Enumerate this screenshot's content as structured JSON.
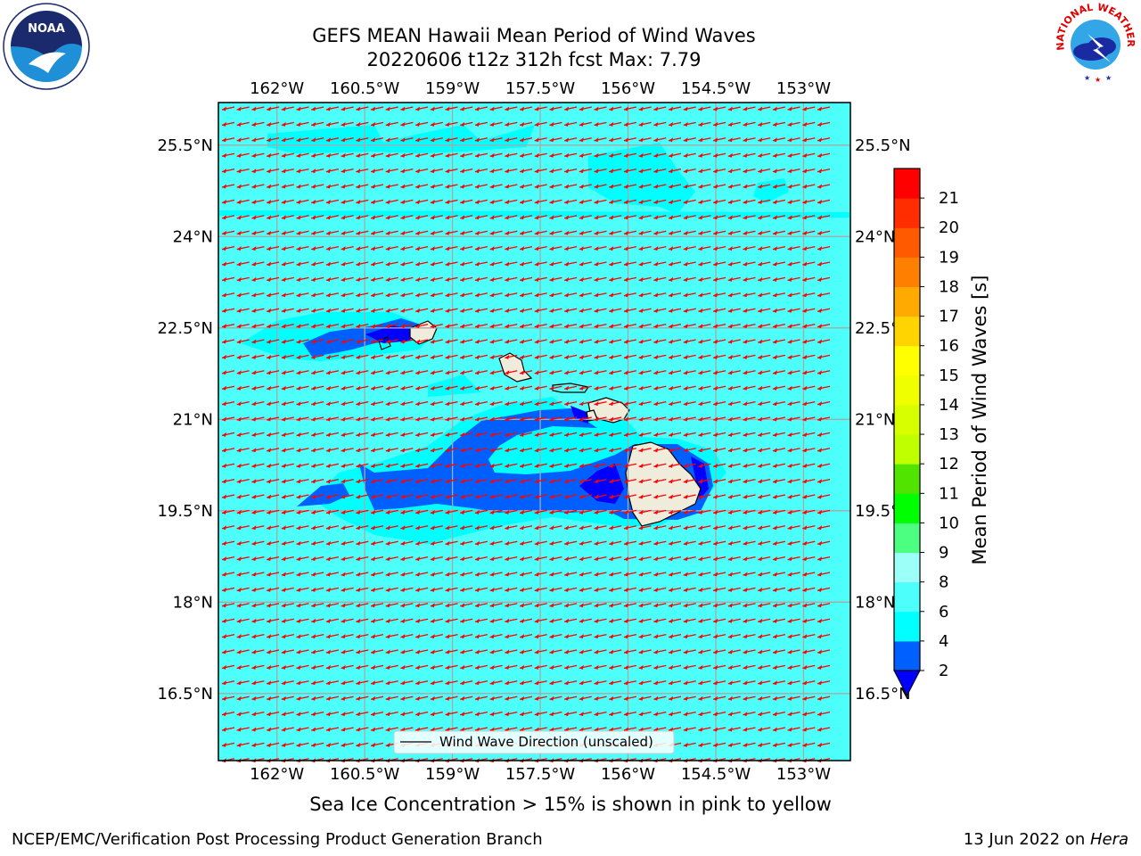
{
  "title_line1": "GEFS MEAN Hawaii Mean Period of Wind Waves",
  "title_line2": "20220606 t12z 312h fcst   Max: 7.79",
  "logos": {
    "left": "noaa-logo",
    "right": "nws-logo",
    "nws_text": "NATIONAL WEATHER SERVICE",
    "noaa_text": "NOAA"
  },
  "map": {
    "lon_labels": [
      "162°W",
      "160.5°W",
      "159°W",
      "157.5°W",
      "156°W",
      "154.5°W",
      "153°W"
    ],
    "lon_values": [
      -162,
      -160.5,
      -159,
      -157.5,
      -156,
      -154.5,
      -153
    ],
    "lat_labels": [
      "25.5°N",
      "24°N",
      "22.5°N",
      "21°N",
      "19.5°N",
      "18°N",
      "16.5°N"
    ],
    "lat_values": [
      25.5,
      24,
      22.5,
      21,
      19.5,
      18,
      16.5
    ],
    "lon_range": [
      -163,
      -152.2
    ],
    "lat_range": [
      15.4,
      26.2
    ],
    "background_color": "#4dfffa",
    "arrow_color": "#ff0000",
    "legend_label": "Wind Wave Direction (unscaled)"
  },
  "colorbar": {
    "label": "Mean Period of Wind Waves [s]",
    "tick_labels": [
      "2",
      "4",
      "6",
      "8",
      "9",
      "10",
      "11",
      "12",
      "13",
      "14",
      "15",
      "16",
      "17",
      "18",
      "19",
      "20",
      "21"
    ],
    "colors": [
      "#0060ff",
      "#00ffff",
      "#4dfffa",
      "#9cfff8",
      "#4dff80",
      "#00ff00",
      "#50e400",
      "#c0ff00",
      "#d8ff00",
      "#f0ff00",
      "#ffff00",
      "#ffd400",
      "#ffaa00",
      "#ff8000",
      "#ff5a00",
      "#ff2d00",
      "#ff0000"
    ],
    "extend_color": "#0000ff"
  },
  "note": "Sea Ice Concentration > 15% is shown in pink to yellow",
  "footer_left": "NCEP/EMC/Verification Post Processing Product Generation Branch",
  "footer_right_prefix": "13 Jun 2022 on ",
  "footer_right_host": "Hera"
}
